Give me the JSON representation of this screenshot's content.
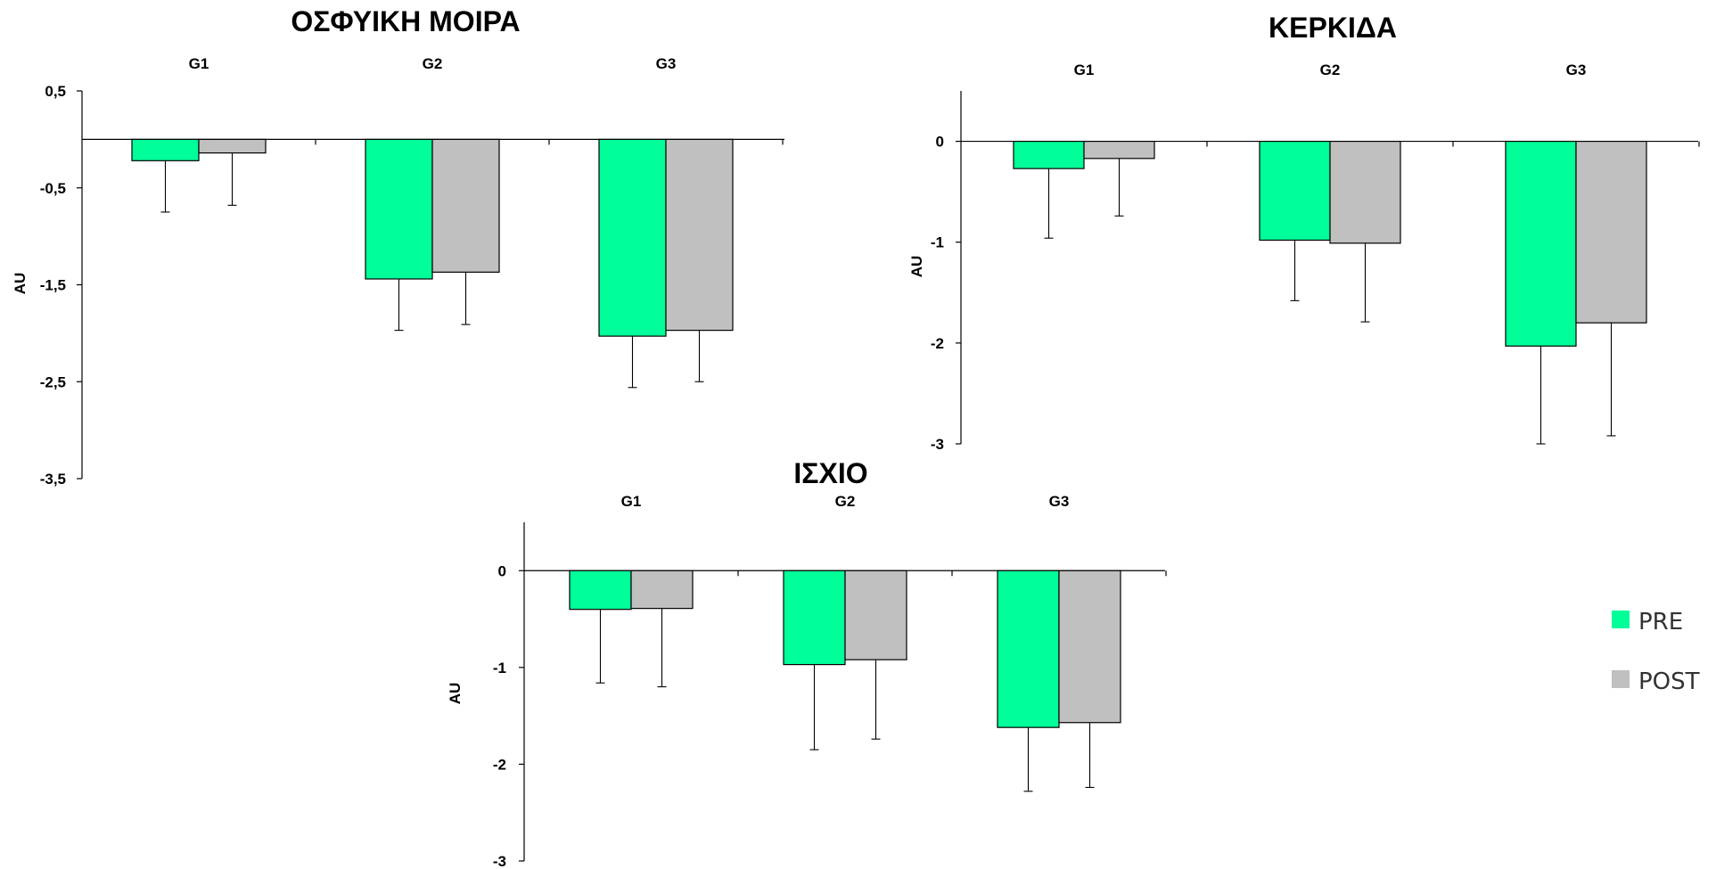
{
  "colors": {
    "pre": "#00FF99",
    "post": "#C0C0C0",
    "axis": "#000000"
  },
  "legend": [
    {
      "key": "pre",
      "label": "PRE"
    },
    {
      "key": "post",
      "label": "POST"
    }
  ],
  "chart_data": [
    {
      "type": "bar",
      "title": "ΟΣΦΥΙΚΗ ΜΟΙΡΑ",
      "ylabel": "AU",
      "categories": [
        "G1",
        "G2",
        "G3"
      ],
      "ylim": [
        -3.5,
        0.5
      ],
      "yticks": [
        0.5,
        -0.5,
        -1.5,
        -2.5,
        -3.5
      ],
      "ytick_labels": [
        "0,5",
        "-0,5",
        "-1,5",
        "-2,5",
        "-3,5"
      ],
      "series": [
        {
          "name": "PRE",
          "values": [
            -0.22,
            -1.44,
            -2.03
          ],
          "errors": [
            0.53,
            0.53,
            0.53
          ]
        },
        {
          "name": "POST",
          "values": [
            -0.14,
            -1.37,
            -1.97
          ],
          "errors": [
            0.54,
            0.54,
            0.53
          ]
        }
      ]
    },
    {
      "type": "bar",
      "title": "ΚΕΡΚΙΔΑ",
      "ylabel": "AU",
      "categories": [
        "G1",
        "G2",
        "G3"
      ],
      "ylim": [
        -3,
        0.5
      ],
      "yticks": [
        0,
        -1,
        -2,
        -3
      ],
      "ytick_labels": [
        "0",
        "-1",
        "-2",
        "-3"
      ],
      "series": [
        {
          "name": "PRE",
          "values": [
            -0.27,
            -0.98,
            -2.03
          ],
          "errors": [
            0.69,
            0.6,
            0.97
          ]
        },
        {
          "name": "POST",
          "values": [
            -0.17,
            -1.01,
            -1.8
          ],
          "errors": [
            0.57,
            0.78,
            1.12
          ]
        }
      ]
    },
    {
      "type": "bar",
      "title": "ΙΣΧΙΟ",
      "ylabel": "AU",
      "categories": [
        "G1",
        "G2",
        "G3"
      ],
      "ylim": [
        -3,
        0.5
      ],
      "yticks": [
        0,
        -1,
        -2,
        -3
      ],
      "ytick_labels": [
        "0",
        "-1",
        "-2",
        "-3"
      ],
      "series": [
        {
          "name": "PRE",
          "values": [
            -0.4,
            -0.97,
            -1.62
          ],
          "errors": [
            0.76,
            0.88,
            0.66
          ]
        },
        {
          "name": "POST",
          "values": [
            -0.39,
            -0.92,
            -1.57
          ],
          "errors": [
            0.81,
            0.82,
            0.67
          ]
        }
      ]
    }
  ]
}
